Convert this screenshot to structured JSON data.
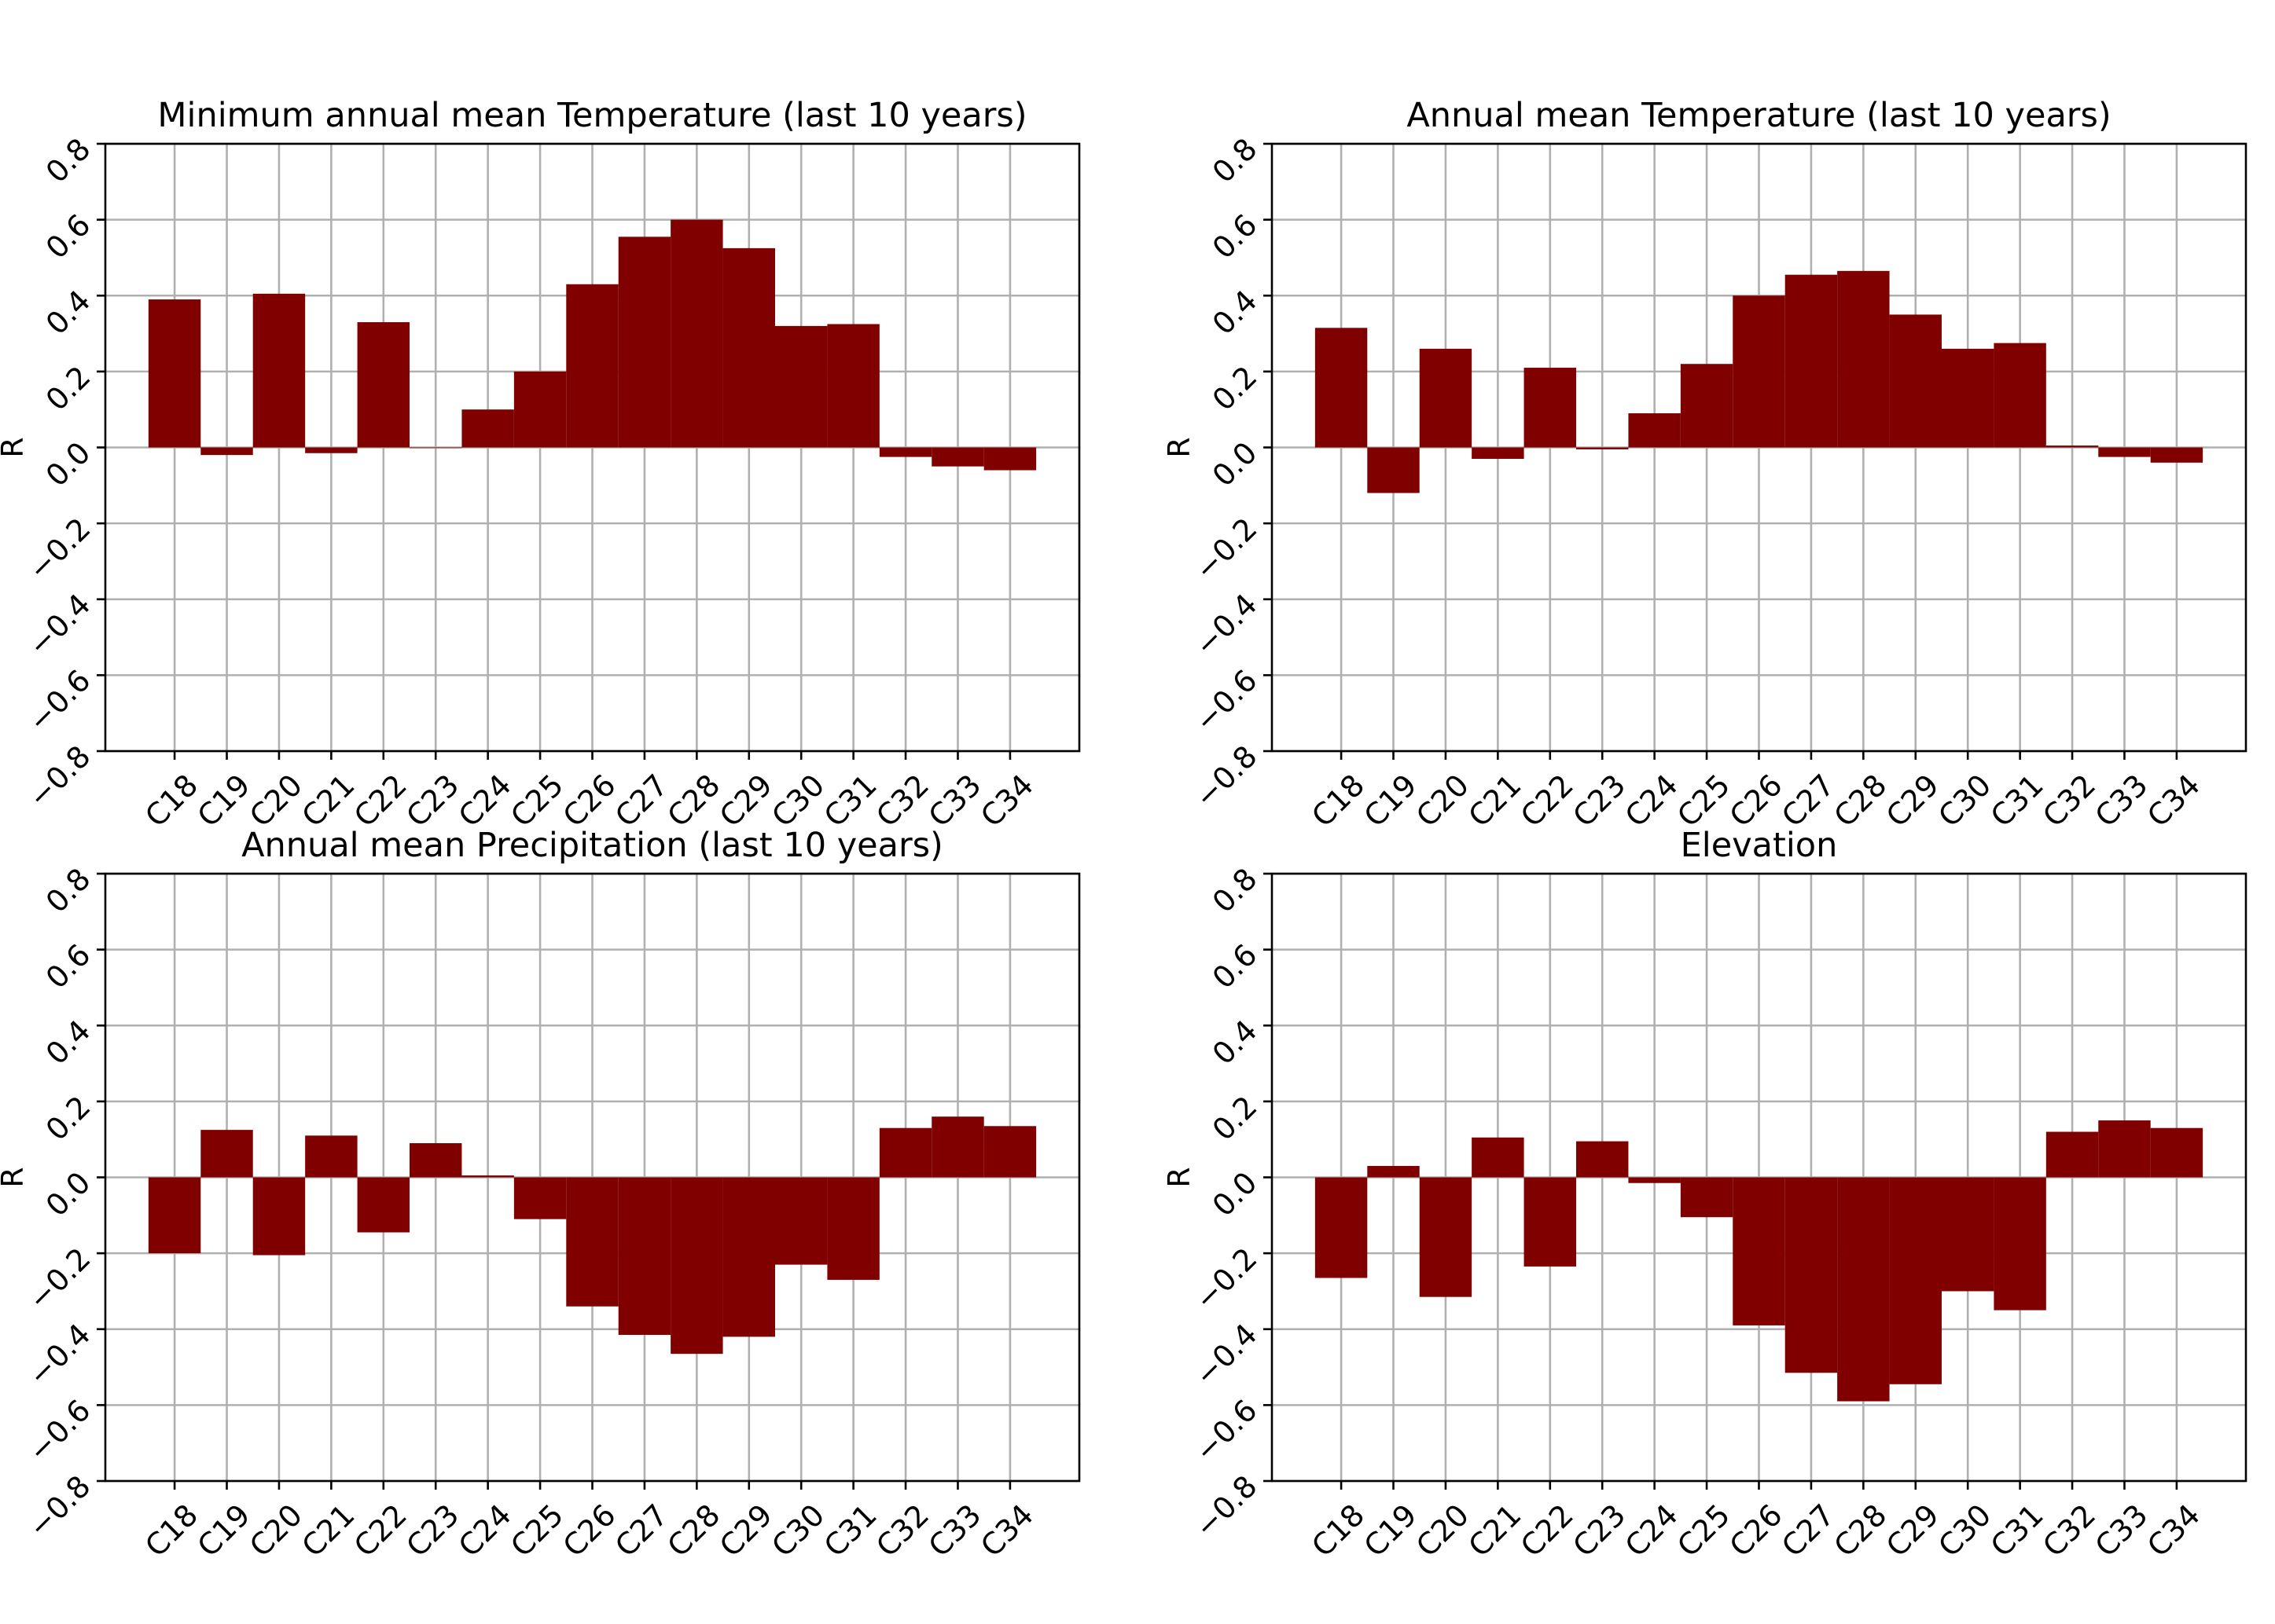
{
  "figure": {
    "bar_color": "#800000",
    "grid_color": "#b0b0b0",
    "axis_color": "#000000"
  },
  "chart_data": [
    {
      "type": "bar",
      "title": "Minimum annual mean Temperature (last 10 years)",
      "xlabel": "",
      "ylabel": "R",
      "ylim": [
        -0.8,
        0.8
      ],
      "yticks": [
        "0.8",
        "0.6",
        "0.4",
        "0.2",
        "0.0",
        "−0.2",
        "−0.4",
        "−0.6",
        "−0.8"
      ],
      "grid": true,
      "categories": [
        "C18",
        "C19",
        "C20",
        "C21",
        "C22",
        "C23",
        "C24",
        "C25",
        "C26",
        "C27",
        "C28",
        "C29",
        "C30",
        "C31",
        "C32",
        "C33",
        "C34"
      ],
      "values": [
        0.39,
        -0.02,
        0.405,
        -0.015,
        0.33,
        0.0,
        0.1,
        0.2,
        0.43,
        0.555,
        0.6,
        0.525,
        0.32,
        0.325,
        -0.025,
        -0.05,
        -0.06
      ]
    },
    {
      "type": "bar",
      "title": "Annual mean Temperature (last 10 years)",
      "xlabel": "",
      "ylabel": "R",
      "ylim": [
        -0.8,
        0.8
      ],
      "yticks": [
        "0.8",
        "0.6",
        "0.4",
        "0.2",
        "0.0",
        "−0.2",
        "−0.4",
        "−0.6",
        "−0.8"
      ],
      "grid": true,
      "categories": [
        "C18",
        "C19",
        "C20",
        "C21",
        "C22",
        "C23",
        "C24",
        "C25",
        "C26",
        "C27",
        "C28",
        "C29",
        "C30",
        "C31",
        "C32",
        "C33",
        "C34"
      ],
      "values": [
        0.315,
        -0.12,
        0.26,
        -0.03,
        0.21,
        -0.005,
        0.09,
        0.22,
        0.4,
        0.455,
        0.465,
        0.35,
        0.26,
        0.275,
        0.005,
        -0.025,
        -0.04
      ]
    },
    {
      "type": "bar",
      "title": "Annual mean Precipitation (last 10 years)",
      "xlabel": "",
      "ylabel": "R",
      "ylim": [
        -0.8,
        0.8
      ],
      "yticks": [
        "0.8",
        "0.6",
        "0.4",
        "0.2",
        "0.0",
        "−0.2",
        "−0.4",
        "−0.6",
        "−0.8"
      ],
      "grid": true,
      "categories": [
        "C18",
        "C19",
        "C20",
        "C21",
        "C22",
        "C23",
        "C24",
        "C25",
        "C26",
        "C27",
        "C28",
        "C29",
        "C30",
        "C31",
        "C32",
        "C33",
        "C34"
      ],
      "values": [
        -0.2,
        0.125,
        -0.205,
        0.11,
        -0.145,
        0.09,
        0.005,
        -0.11,
        -0.34,
        -0.415,
        -0.465,
        -0.42,
        -0.23,
        -0.27,
        0.13,
        0.16,
        0.135
      ]
    },
    {
      "type": "bar",
      "title": "Elevation",
      "xlabel": "",
      "ylabel": "R",
      "ylim": [
        -0.8,
        0.8
      ],
      "yticks": [
        "0.8",
        "0.6",
        "0.4",
        "0.2",
        "0.0",
        "−0.2",
        "−0.4",
        "−0.6",
        "−0.8"
      ],
      "grid": true,
      "categories": [
        "C18",
        "C19",
        "C20",
        "C21",
        "C22",
        "C23",
        "C24",
        "C25",
        "C26",
        "C27",
        "C28",
        "C29",
        "C30",
        "C31",
        "C32",
        "C33",
        "C34"
      ],
      "values": [
        -0.265,
        0.03,
        -0.315,
        0.105,
        -0.235,
        0.095,
        -0.015,
        -0.105,
        -0.39,
        -0.515,
        -0.59,
        -0.545,
        -0.3,
        -0.35,
        0.12,
        0.15,
        0.13
      ]
    }
  ]
}
